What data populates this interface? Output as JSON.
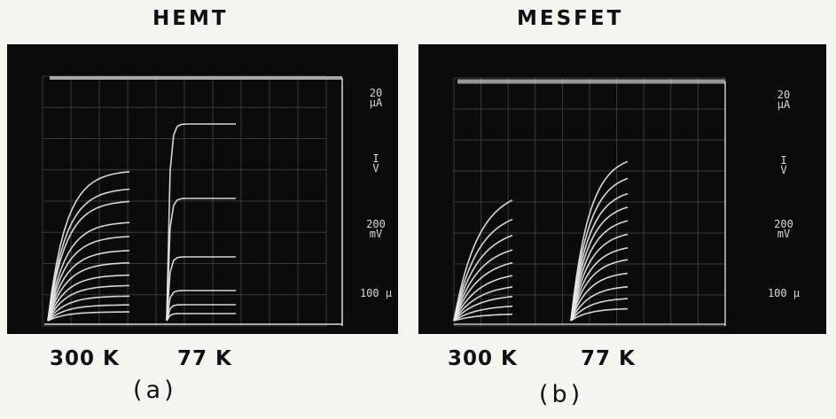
{
  "figure": {
    "panels": [
      {
        "title": "HEMT",
        "scale": {
          "current": "20\nµA",
          "current_symbol": "I\nV",
          "voltage": "200\nmV",
          "step": "100 µ"
        },
        "temps": [
          "300 K",
          "77 K"
        ],
        "label": "(a)"
      },
      {
        "title": "MESFET",
        "scale": {
          "current": "20\nµA",
          "current_symbol": "I\nV",
          "voltage": "200\nmV",
          "step": "100 µ"
        },
        "temps": [
          "300 K",
          "77 K"
        ],
        "label": "(b)"
      }
    ]
  },
  "colors": {
    "screen": "#0b0b0b",
    "trace": "#e8e8e8",
    "grid": "#3a3a3a",
    "paper": "#f4f4f2",
    "ink": "#111111"
  }
}
